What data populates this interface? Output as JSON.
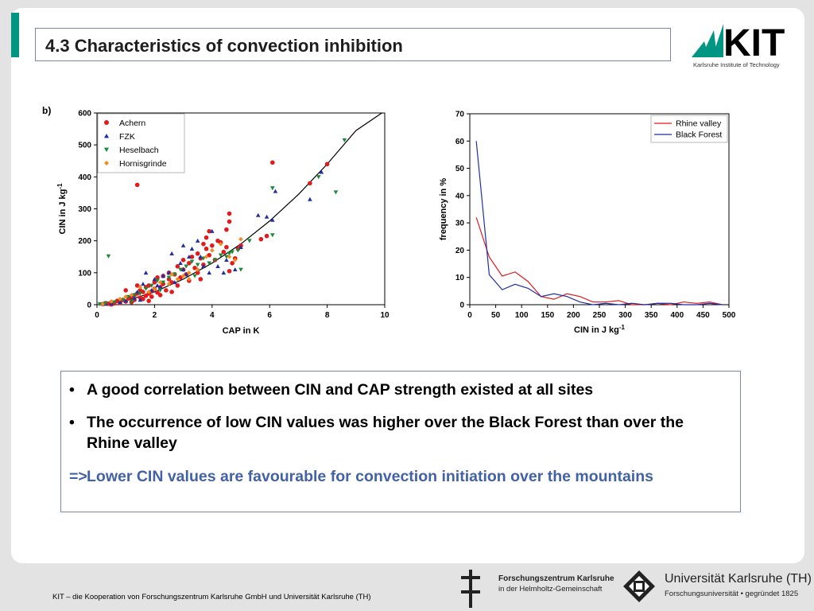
{
  "slide": {
    "title": "4.3 Characteristics of convection inhibition",
    "panel_label": "b)"
  },
  "logo": {
    "name": "KIT",
    "subtitle": "Karlsruhe Institute of Technology",
    "color": "#009682"
  },
  "bullets": [
    "A good correlation between CIN and CAP strength existed at all sites",
    "The occurrence of low CIN values was higher over the Black Forest than over the Rhine valley"
  ],
  "conclusion": {
    "arrow": "=>",
    "text": "Lower CIN values are favourable for convection initiation over the mountains"
  },
  "footer": {
    "text": "KIT – die Kooperation von Forschungszentrum Karlsruhe GmbH und Universität Karlsruhe (TH)",
    "fzk_name": "Forschungszentrum Karlsruhe",
    "fzk_sub": "in der Helmholtz-Gemeinschaft",
    "uni_name": "Universität Karlsruhe (TH)",
    "uni_sub": "Forschungsuniversität • gegründet 1825"
  },
  "chart_data": [
    {
      "type": "scatter",
      "xlabel": "CAP in K",
      "ylabel": "CIN in J kg",
      "ylabel_sup": "-1",
      "xlim": [
        0,
        10
      ],
      "ylim": [
        0,
        600
      ],
      "xticks": [
        "0",
        "2",
        "4",
        "6",
        "8",
        "10"
      ],
      "yticks": [
        "0",
        "100",
        "200",
        "300",
        "400",
        "500",
        "600"
      ],
      "legend_position": "top-left",
      "series": [
        {
          "name": "Achern",
          "marker": "circle",
          "color": "#e31a1c",
          "points": [
            [
              0.2,
              2
            ],
            [
              0.3,
              5
            ],
            [
              0.4,
              3
            ],
            [
              0.5,
              8
            ],
            [
              0.6,
              4
            ],
            [
              0.7,
              12
            ],
            [
              0.8,
              6
            ],
            [
              0.9,
              15
            ],
            [
              1.0,
              10
            ],
            [
              1.1,
              20
            ],
            [
              1.2,
              25
            ],
            [
              1.2,
              8
            ],
            [
              1.3,
              30
            ],
            [
              1.3,
              15
            ],
            [
              1.4,
              375
            ],
            [
              1.4,
              35
            ],
            [
              1.5,
              22
            ],
            [
              1.5,
              45
            ],
            [
              1.6,
              18
            ],
            [
              1.6,
              40
            ],
            [
              1.7,
              28
            ],
            [
              1.7,
              55
            ],
            [
              1.8,
              35
            ],
            [
              1.8,
              60
            ],
            [
              1.9,
              42
            ],
            [
              1.9,
              25
            ],
            [
              2.0,
              50
            ],
            [
              2.0,
              70
            ],
            [
              2.1,
              38
            ],
            [
              2.1,
              85
            ],
            [
              2.2,
              55
            ],
            [
              2.3,
              90
            ],
            [
              2.3,
              65
            ],
            [
              2.4,
              45
            ],
            [
              2.5,
              80
            ],
            [
              2.5,
              100
            ],
            [
              2.6,
              70
            ],
            [
              2.7,
              95
            ],
            [
              2.8,
              120
            ],
            [
              2.8,
              60
            ],
            [
              2.9,
              85
            ],
            [
              3.0,
              110
            ],
            [
              3.0,
              140
            ],
            [
              3.1,
              95
            ],
            [
              3.2,
              130
            ],
            [
              3.2,
              75
            ],
            [
              3.3,
              150
            ],
            [
              3.4,
              115
            ],
            [
              3.5,
              160
            ],
            [
              3.5,
              100
            ],
            [
              3.6,
              145
            ],
            [
              3.7,
              190
            ],
            [
              3.7,
              125
            ],
            [
              3.8,
              175
            ],
            [
              3.8,
              210
            ],
            [
              3.9,
              155
            ],
            [
              3.9,
              230
            ],
            [
              4.0,
              185
            ],
            [
              4.1,
              140
            ],
            [
              4.2,
              200
            ],
            [
              4.3,
              195
            ],
            [
              4.4,
              165
            ],
            [
              4.5,
              180
            ],
            [
              4.6,
              260
            ],
            [
              4.6,
              105
            ],
            [
              4.6,
              285
            ],
            [
              4.7,
              130
            ],
            [
              4.8,
              145
            ],
            [
              4.9,
              175
            ],
            [
              5.0,
              185
            ],
            [
              5.7,
              205
            ],
            [
              5.9,
              215
            ],
            [
              6.1,
              445
            ],
            [
              7.4,
              380
            ],
            [
              8.0,
              440
            ],
            [
              4.5,
              235
            ],
            [
              3.6,
              80
            ],
            [
              2.6,
              40
            ],
            [
              1.0,
              45
            ],
            [
              0.5,
              1
            ],
            [
              1.4,
              60
            ],
            [
              1.8,
              12
            ],
            [
              2.2,
              30
            ]
          ]
        },
        {
          "name": "FZK",
          "marker": "triangle-up",
          "color": "#1f2fa8",
          "points": [
            [
              0.3,
              2
            ],
            [
              0.5,
              4
            ],
            [
              0.8,
              8
            ],
            [
              1.0,
              12
            ],
            [
              1.2,
              30
            ],
            [
              1.4,
              40
            ],
            [
              1.5,
              15
            ],
            [
              1.6,
              65
            ],
            [
              1.7,
              100
            ],
            [
              1.9,
              45
            ],
            [
              2.0,
              80
            ],
            [
              2.1,
              60
            ],
            [
              2.2,
              55
            ],
            [
              2.3,
              90
            ],
            [
              2.5,
              100
            ],
            [
              2.7,
              70
            ],
            [
              2.9,
              130
            ],
            [
              3.0,
              110
            ],
            [
              3.1,
              95
            ],
            [
              3.2,
              150
            ],
            [
              3.3,
              175
            ],
            [
              3.5,
              200
            ],
            [
              3.6,
              150
            ],
            [
              3.7,
              120
            ],
            [
              3.9,
              100
            ],
            [
              4.0,
              230
            ],
            [
              4.2,
              120
            ],
            [
              4.4,
              100
            ],
            [
              4.5,
              140
            ],
            [
              4.8,
              110
            ],
            [
              5.0,
              180
            ],
            [
              5.6,
              280
            ],
            [
              5.9,
              275
            ],
            [
              6.1,
              265
            ],
            [
              6.2,
              355
            ],
            [
              7.4,
              330
            ],
            [
              7.8,
              415
            ],
            [
              3.0,
              185
            ],
            [
              2.6,
              160
            ],
            [
              1.3,
              20
            ]
          ]
        },
        {
          "name": "Heselbach",
          "marker": "triangle-down",
          "color": "#1a8a3a",
          "points": [
            [
              0.1,
              2
            ],
            [
              0.3,
              5
            ],
            [
              0.4,
              152
            ],
            [
              0.6,
              8
            ],
            [
              0.9,
              15
            ],
            [
              1.1,
              25
            ],
            [
              1.3,
              30
            ],
            [
              1.5,
              35
            ],
            [
              1.7,
              50
            ],
            [
              1.9,
              60
            ],
            [
              2.1,
              75
            ],
            [
              2.3,
              70
            ],
            [
              2.5,
              85
            ],
            [
              2.7,
              95
            ],
            [
              2.9,
              110
            ],
            [
              3.1,
              120
            ],
            [
              3.3,
              135
            ],
            [
              3.5,
              125
            ],
            [
              3.7,
              145
            ],
            [
              3.9,
              130
            ],
            [
              4.1,
              140
            ],
            [
              4.3,
              155
            ],
            [
              4.5,
              150
            ],
            [
              4.7,
              165
            ],
            [
              4.9,
              170
            ],
            [
              5.0,
              110
            ],
            [
              5.3,
              200
            ],
            [
              6.1,
              365
            ],
            [
              6.1,
              218
            ],
            [
              7.7,
              400
            ],
            [
              8.3,
              352
            ],
            [
              8.6,
              515
            ],
            [
              2.2,
              45
            ],
            [
              3.4,
              90
            ],
            [
              4.6,
              160
            ],
            [
              1.2,
              10
            ]
          ]
        },
        {
          "name": "Hornisgrinde",
          "marker": "diamond",
          "color": "#f08c1e",
          "points": [
            [
              0.2,
              2
            ],
            [
              0.5,
              10
            ],
            [
              0.8,
              18
            ],
            [
              1.0,
              25
            ],
            [
              1.2,
              30
            ],
            [
              1.5,
              55
            ],
            [
              1.8,
              40
            ],
            [
              2.0,
              50
            ],
            [
              2.2,
              70
            ],
            [
              2.5,
              65
            ],
            [
              2.8,
              80
            ],
            [
              3.0,
              90
            ],
            [
              3.2,
              100
            ],
            [
              3.5,
              110
            ],
            [
              3.8,
              150
            ],
            [
              4.0,
              170
            ],
            [
              4.3,
              190
            ],
            [
              4.6,
              150
            ],
            [
              4.8,
              140
            ],
            [
              5.0,
              205
            ],
            [
              3.2,
              80
            ],
            [
              2.6,
              95
            ]
          ]
        }
      ],
      "fit_curve": {
        "color": "#000000",
        "points": [
          [
            0.2,
            1
          ],
          [
            1,
            12
          ],
          [
            2,
            40
          ],
          [
            3,
            80
          ],
          [
            4,
            130
          ],
          [
            5,
            190
          ],
          [
            6,
            262
          ],
          [
            7,
            345
          ],
          [
            8,
            440
          ],
          [
            9,
            545
          ],
          [
            9.9,
            600
          ]
        ]
      }
    },
    {
      "type": "line",
      "xlabel": "CIN in J kg",
      "xlabel_sup": "-1",
      "ylabel": "frequency in %",
      "xlim": [
        0,
        500
      ],
      "ylim": [
        0,
        70
      ],
      "xticks": [
        "0",
        "50",
        "100",
        "150",
        "200",
        "250",
        "300",
        "350",
        "400",
        "450",
        "500"
      ],
      "yticks": [
        "0",
        "10",
        "20",
        "30",
        "40",
        "50",
        "60",
        "70"
      ],
      "legend_position": "top-right",
      "series": [
        {
          "name": "Rhine valley",
          "color": "#e31a1c",
          "x": [
            12.5,
            37.5,
            62.5,
            87.5,
            112.5,
            137.5,
            162.5,
            187.5,
            212.5,
            237.5,
            262.5,
            287.5,
            312.5,
            337.5,
            362.5,
            387.5,
            412.5,
            437.5,
            462.5,
            487.5
          ],
          "values": [
            32,
            17.5,
            10.5,
            12,
            8.5,
            3,
            2,
            4,
            3,
            1,
            1,
            1.5,
            0,
            0,
            0.5,
            0,
            1,
            0.5,
            1,
            0
          ]
        },
        {
          "name": "Black Forest",
          "color": "#1f2fa8",
          "x": [
            12.5,
            37.5,
            62.5,
            87.5,
            112.5,
            137.5,
            162.5,
            187.5,
            212.5,
            237.5,
            262.5,
            287.5,
            312.5,
            337.5,
            362.5,
            387.5,
            412.5,
            437.5,
            462.5,
            487.5
          ],
          "values": [
            60,
            11,
            5.5,
            7.5,
            6,
            3,
            4,
            3,
            1,
            0,
            0.5,
            0,
            0.5,
            0,
            0.5,
            0.5,
            0,
            0,
            0.5,
            0
          ]
        }
      ]
    }
  ]
}
